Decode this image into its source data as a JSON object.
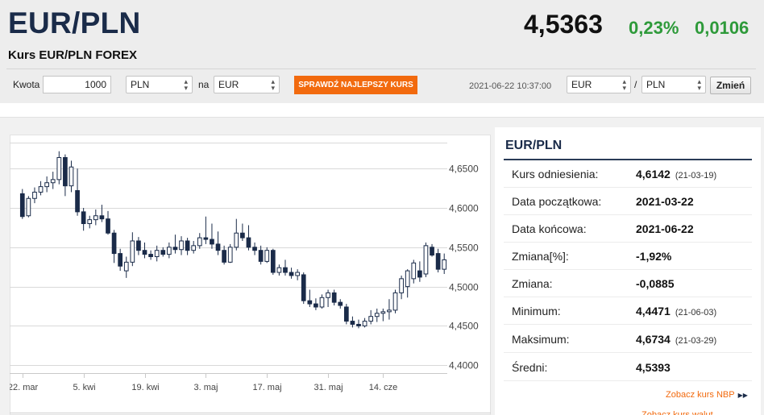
{
  "header": {
    "title": "EUR/PLN",
    "subtitle": "Kurs EUR/PLN FOREX",
    "price": "4,5363",
    "change_pct": "0,23%",
    "change_abs": "0,0106"
  },
  "converter": {
    "amount_label": "Kwota",
    "amount_value": "1000",
    "from_currency": "PLN",
    "to_label": "na",
    "to_currency": "EUR",
    "best_rate_button": "SPRAWDŹ NAJLEPSZY KURS",
    "timestamp": "2021-06-22 10:37:00",
    "pair_from": "EUR",
    "pair_slash": "/",
    "pair_to": "PLN",
    "swap_button": "Zmień"
  },
  "stats": {
    "title": "EUR/PLN",
    "rows": [
      {
        "label": "Kurs odniesienia:",
        "value": "4,6142",
        "date": "(21-03-19)"
      },
      {
        "label": "Data początkowa:",
        "value": "2021-03-22",
        "date": ""
      },
      {
        "label": "Data końcowa:",
        "value": "2021-06-22",
        "date": ""
      },
      {
        "label": "Zmiana[%]:",
        "value": "-1,92%",
        "date": ""
      },
      {
        "label": "Zmiana:",
        "value": "-0,0885",
        "date": ""
      },
      {
        "label": "Minimum:",
        "value": "4,4471",
        "date": "(21-06-03)"
      },
      {
        "label": "Maksimum:",
        "value": "4,6734",
        "date": "(21-03-29)"
      },
      {
        "label": "Średni:",
        "value": "4,5393",
        "date": ""
      }
    ],
    "nbp_link": "Zobacz kurs NBP",
    "next_link_partial": "Zobacz kurs walut"
  },
  "colors": {
    "title_navy": "#1a2b49",
    "positive_green": "#2e9a3a",
    "accent_orange": "#f26a0e",
    "candle_dark": "#1a2b49"
  },
  "chart_data": {
    "type": "candlestick",
    "x_tick_labels": [
      "22. mar",
      "5. kwi",
      "19. kwi",
      "3. maj",
      "17. maj",
      "31. maj",
      "14. cze"
    ],
    "x_tick_index": [
      0,
      10,
      20,
      30,
      40,
      50,
      59
    ],
    "y_tick_labels": [
      "4,6500",
      "4,6000",
      "4,5500",
      "4,5000",
      "4,4500",
      "4,4000"
    ],
    "y_ticks": [
      4.65,
      4.6,
      4.55,
      4.5,
      4.45,
      4.4
    ],
    "ylim": [
      4.39,
      4.685
    ],
    "y_axis_position": "right",
    "grid": "horizontal",
    "candles": [
      {
        "o": 4.618,
        "h": 4.624,
        "l": 4.586,
        "c": 4.589
      },
      {
        "o": 4.59,
        "h": 4.615,
        "l": 4.588,
        "c": 4.612
      },
      {
        "o": 4.612,
        "h": 4.626,
        "l": 4.606,
        "c": 4.62
      },
      {
        "o": 4.62,
        "h": 4.634,
        "l": 4.616,
        "c": 4.627
      },
      {
        "o": 4.627,
        "h": 4.64,
        "l": 4.62,
        "c": 4.632
      },
      {
        "o": 4.632,
        "h": 4.646,
        "l": 4.624,
        "c": 4.636
      },
      {
        "o": 4.636,
        "h": 4.672,
        "l": 4.63,
        "c": 4.664
      },
      {
        "o": 4.664,
        "h": 4.668,
        "l": 4.615,
        "c": 4.628
      },
      {
        "o": 4.628,
        "h": 4.66,
        "l": 4.62,
        "c": 4.652
      },
      {
        "o": 4.622,
        "h": 4.65,
        "l": 4.59,
        "c": 4.595
      },
      {
        "o": 4.595,
        "h": 4.6,
        "l": 4.571,
        "c": 4.58
      },
      {
        "o": 4.58,
        "h": 4.59,
        "l": 4.574,
        "c": 4.585
      },
      {
        "o": 4.585,
        "h": 4.598,
        "l": 4.578,
        "c": 4.59
      },
      {
        "o": 4.59,
        "h": 4.604,
        "l": 4.582,
        "c": 4.586
      },
      {
        "o": 4.586,
        "h": 4.596,
        "l": 4.566,
        "c": 4.568
      },
      {
        "o": 4.568,
        "h": 4.572,
        "l": 4.53,
        "c": 4.542
      },
      {
        "o": 4.542,
        "h": 4.548,
        "l": 4.52,
        "c": 4.526
      },
      {
        "o": 4.52,
        "h": 4.538,
        "l": 4.511,
        "c": 4.531
      },
      {
        "o": 4.531,
        "h": 4.569,
        "l": 4.526,
        "c": 4.558
      },
      {
        "o": 4.558,
        "h": 4.563,
        "l": 4.54,
        "c": 4.546
      },
      {
        "o": 4.546,
        "h": 4.556,
        "l": 4.536,
        "c": 4.541
      },
      {
        "o": 4.541,
        "h": 4.546,
        "l": 4.534,
        "c": 4.538
      },
      {
        "o": 4.538,
        "h": 4.552,
        "l": 4.532,
        "c": 4.546
      },
      {
        "o": 4.546,
        "h": 4.55,
        "l": 4.538,
        "c": 4.541
      },
      {
        "o": 4.541,
        "h": 4.556,
        "l": 4.536,
        "c": 4.55
      },
      {
        "o": 4.55,
        "h": 4.566,
        "l": 4.542,
        "c": 4.547
      },
      {
        "o": 4.547,
        "h": 4.564,
        "l": 4.54,
        "c": 4.558
      },
      {
        "o": 4.558,
        "h": 4.562,
        "l": 4.54,
        "c": 4.546
      },
      {
        "o": 4.546,
        "h": 4.558,
        "l": 4.542,
        "c": 4.552
      },
      {
        "o": 4.552,
        "h": 4.568,
        "l": 4.548,
        "c": 4.562
      },
      {
        "o": 4.562,
        "h": 4.589,
        "l": 4.554,
        "c": 4.56
      },
      {
        "o": 4.56,
        "h": 4.58,
        "l": 4.548,
        "c": 4.554
      },
      {
        "o": 4.554,
        "h": 4.57,
        "l": 4.54,
        "c": 4.546
      },
      {
        "o": 4.546,
        "h": 4.552,
        "l": 4.528,
        "c": 4.531
      },
      {
        "o": 4.531,
        "h": 4.554,
        "l": 4.53,
        "c": 4.55
      },
      {
        "o": 4.55,
        "h": 4.586,
        "l": 4.546,
        "c": 4.568
      },
      {
        "o": 4.568,
        "h": 4.58,
        "l": 4.558,
        "c": 4.562
      },
      {
        "o": 4.562,
        "h": 4.578,
        "l": 4.546,
        "c": 4.55
      },
      {
        "o": 4.55,
        "h": 4.556,
        "l": 4.54,
        "c": 4.546
      },
      {
        "o": 4.546,
        "h": 4.552,
        "l": 4.528,
        "c": 4.532
      },
      {
        "o": 4.532,
        "h": 4.55,
        "l": 4.53,
        "c": 4.546
      },
      {
        "o": 4.546,
        "h": 4.548,
        "l": 4.515,
        "c": 4.518
      },
      {
        "o": 4.518,
        "h": 4.528,
        "l": 4.514,
        "c": 4.524
      },
      {
        "o": 4.524,
        "h": 4.534,
        "l": 4.514,
        "c": 4.518
      },
      {
        "o": 4.518,
        "h": 4.524,
        "l": 4.51,
        "c": 4.514
      },
      {
        "o": 4.514,
        "h": 4.522,
        "l": 4.508,
        "c": 4.518
      },
      {
        "o": 4.515,
        "h": 4.518,
        "l": 4.478,
        "c": 4.482
      },
      {
        "o": 4.482,
        "h": 4.496,
        "l": 4.474,
        "c": 4.478
      },
      {
        "o": 4.478,
        "h": 4.485,
        "l": 4.47,
        "c": 4.474
      },
      {
        "o": 4.474,
        "h": 4.49,
        "l": 4.472,
        "c": 4.486
      },
      {
        "o": 4.486,
        "h": 4.496,
        "l": 4.474,
        "c": 4.492
      },
      {
        "o": 4.492,
        "h": 4.496,
        "l": 4.476,
        "c": 4.48
      },
      {
        "o": 4.48,
        "h": 4.484,
        "l": 4.472,
        "c": 4.476
      },
      {
        "o": 4.474,
        "h": 4.478,
        "l": 4.452,
        "c": 4.456
      },
      {
        "o": 4.456,
        "h": 4.462,
        "l": 4.448,
        "c": 4.452
      },
      {
        "o": 4.452,
        "h": 4.458,
        "l": 4.447,
        "c": 4.45
      },
      {
        "o": 4.45,
        "h": 4.46,
        "l": 4.448,
        "c": 4.456
      },
      {
        "o": 4.456,
        "h": 4.47,
        "l": 4.452,
        "c": 4.462
      },
      {
        "o": 4.462,
        "h": 4.472,
        "l": 4.455,
        "c": 4.466
      },
      {
        "o": 4.466,
        "h": 4.472,
        "l": 4.456,
        "c": 4.468
      },
      {
        "o": 4.468,
        "h": 4.484,
        "l": 4.458,
        "c": 4.47
      },
      {
        "o": 4.47,
        "h": 4.496,
        "l": 4.466,
        "c": 4.492
      },
      {
        "o": 4.492,
        "h": 4.514,
        "l": 4.484,
        "c": 4.51
      },
      {
        "o": 4.5,
        "h": 4.522,
        "l": 4.486,
        "c": 4.52
      },
      {
        "o": 4.51,
        "h": 4.534,
        "l": 4.504,
        "c": 4.53
      },
      {
        "o": 4.52,
        "h": 4.532,
        "l": 4.506,
        "c": 4.512
      },
      {
        "o": 4.516,
        "h": 4.556,
        "l": 4.512,
        "c": 4.552
      },
      {
        "o": 4.55,
        "h": 4.554,
        "l": 4.538,
        "c": 4.54
      },
      {
        "o": 4.542,
        "h": 4.548,
        "l": 4.518,
        "c": 4.522
      },
      {
        "o": 4.522,
        "h": 4.542,
        "l": 4.516,
        "c": 4.534
      }
    ]
  }
}
